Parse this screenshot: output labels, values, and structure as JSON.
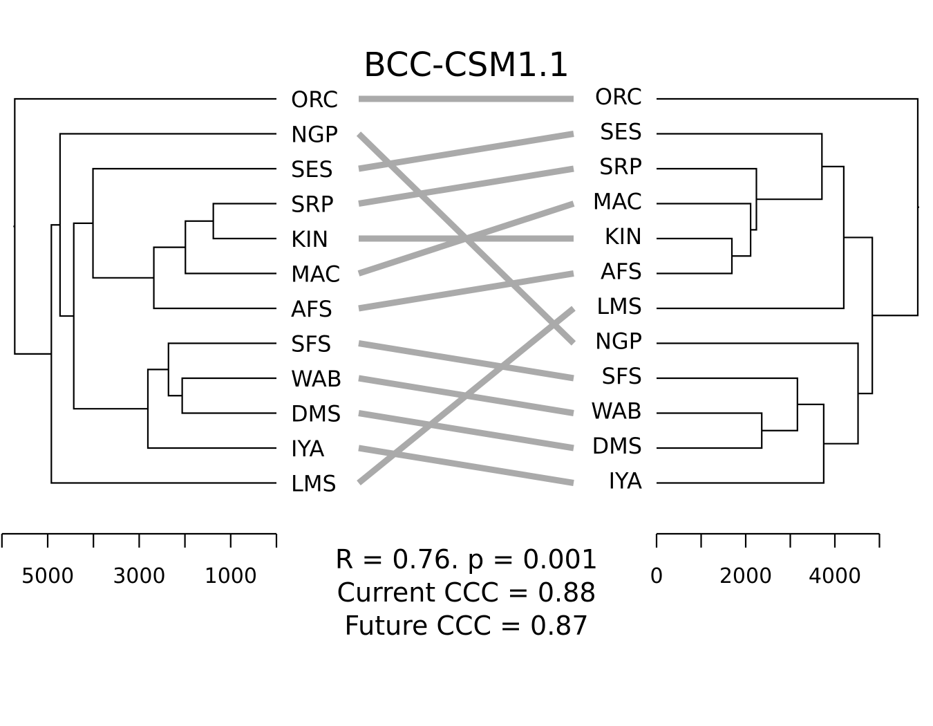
{
  "chart_data": {
    "type": "tanglegram",
    "title": "BCC-CSM1.1",
    "left_labels": [
      "ORC",
      "NGP",
      "SES",
      "SRP",
      "KIN",
      "MAC",
      "AFS",
      "SFS",
      "WAB",
      "DMS",
      "IYA",
      "LMS"
    ],
    "right_labels": [
      "ORC",
      "SES",
      "SRP",
      "MAC",
      "KIN",
      "AFS",
      "LMS",
      "NGP",
      "SFS",
      "WAB",
      "DMS",
      "IYA"
    ],
    "left_axis": {
      "ticks": [
        6000,
        5000,
        4000,
        3000,
        2000,
        1000,
        0
      ],
      "tick_labels": [
        "5000",
        "3000",
        "1000"
      ],
      "labeled_values": [
        5000,
        3000,
        1000
      ],
      "range": [
        6000,
        0
      ]
    },
    "right_axis": {
      "ticks": [
        0,
        1000,
        2000,
        3000,
        4000,
        5000
      ],
      "tick_labels": [
        "0",
        "2000",
        "4000"
      ],
      "labeled_values": [
        0,
        2000,
        4000
      ],
      "range": [
        0,
        5000
      ]
    },
    "left_merges": [
      {
        "id": "L1",
        "a": "SRP",
        "b": "KIN",
        "height": 1380
      },
      {
        "id": "L2",
        "a": "L1",
        "b": "MAC",
        "height": 1990
      },
      {
        "id": "L3",
        "a": "L2",
        "b": "AFS",
        "height": 2680
      },
      {
        "id": "L4",
        "a": "SES",
        "b": "L3",
        "height": 4010
      },
      {
        "id": "L5",
        "a": "WAB",
        "b": "DMS",
        "height": 2060
      },
      {
        "id": "L6",
        "a": "SFS",
        "b": "L5",
        "height": 2360
      },
      {
        "id": "L7",
        "a": "L6",
        "b": "IYA",
        "height": 2810
      },
      {
        "id": "L8",
        "a": "L4",
        "b": "L7",
        "height": 4430
      },
      {
        "id": "L9",
        "a": "NGP",
        "b": "L8",
        "height": 4730
      },
      {
        "id": "L10",
        "a": "L9",
        "b": "LMS",
        "height": 4920
      },
      {
        "id": "L11",
        "a": "ORC",
        "b": "L10",
        "height": 5720
      }
    ],
    "right_merges": [
      {
        "id": "R1",
        "a": "KIN",
        "b": "AFS",
        "height": 1690
      },
      {
        "id": "R2",
        "a": "MAC",
        "b": "R1",
        "height": 2110
      },
      {
        "id": "R3",
        "a": "SRP",
        "b": "R2",
        "height": 2240
      },
      {
        "id": "R4",
        "a": "SES",
        "b": "R3",
        "height": 3710
      },
      {
        "id": "R5",
        "a": "R4",
        "b": "LMS",
        "height": 4200
      },
      {
        "id": "R6",
        "a": "WAB",
        "b": "DMS",
        "height": 2360
      },
      {
        "id": "R7",
        "a": "SFS",
        "b": "R6",
        "height": 3160
      },
      {
        "id": "R8",
        "a": "R7",
        "b": "IYA",
        "height": 3750
      },
      {
        "id": "R9",
        "a": "NGP",
        "b": "R8",
        "height": 4520
      },
      {
        "id": "R10",
        "a": "R5",
        "b": "R9",
        "height": 4840
      },
      {
        "id": "R11",
        "a": "ORC",
        "b": "R10",
        "height": 5860
      }
    ],
    "stats": [
      "R = 0.76. p = 0.001",
      "Current CCC = 0.88",
      "Future CCC = 0.87"
    ],
    "connector_color": "#aaaaaa",
    "line_color": "#000000"
  }
}
